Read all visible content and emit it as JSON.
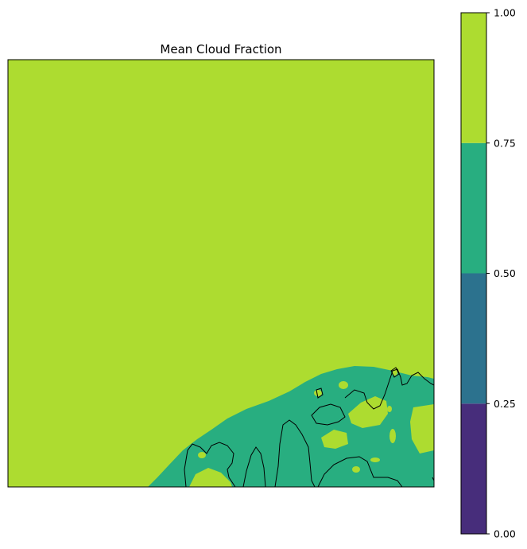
{
  "chart_data": {
    "type": "heatmap",
    "title": "Mean Cloud Fraction",
    "xlabel": "",
    "ylabel": "",
    "colorbar": {
      "levels": [
        0.0,
        0.25,
        0.5,
        0.75,
        1.0
      ],
      "tick_labels": [
        "0.00",
        "0.25",
        "0.50",
        "0.75",
        "1.00"
      ],
      "colors": [
        "#472d7b",
        "#2c728e",
        "#28ae80",
        "#addc30"
      ],
      "placement": "right"
    },
    "regions": [
      {
        "name": "background",
        "range": [
          0.75,
          1.0
        ],
        "color": "#addc30"
      },
      {
        "name": "lower-right",
        "range": [
          0.5,
          0.75
        ],
        "color": "#28ae80"
      }
    ],
    "coastline": true,
    "grid": false
  }
}
